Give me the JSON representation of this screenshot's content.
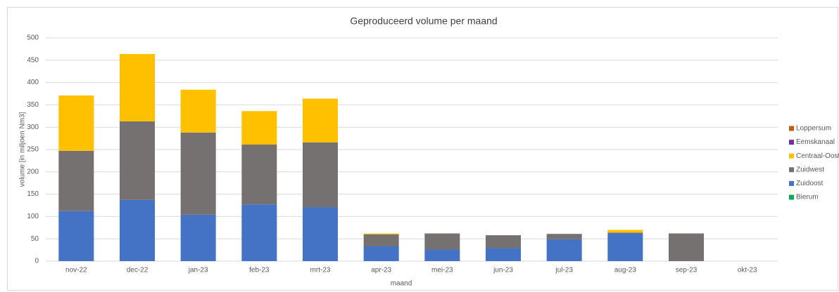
{
  "chart_data": {
    "type": "bar",
    "stacked": true,
    "title": "Geproduceerd volume per maand",
    "x_label": "maand",
    "y_label": "volume [in miljoen Nm3]",
    "categories": [
      "nov-22",
      "dec-22",
      "jan-23",
      "feb-23",
      "mrt-23",
      "apr-23",
      "mei-23",
      "jun-23",
      "jul-23",
      "aug-23",
      "sep-23",
      "okt-23"
    ],
    "series": [
      {
        "name": "Bierum",
        "color": "#00b050",
        "values": [
          0,
          0,
          0,
          0,
          0,
          0,
          0,
          0,
          0,
          0,
          0,
          0
        ]
      },
      {
        "name": "Zuidoost",
        "color": "#4472c4",
        "values": [
          112,
          137,
          104,
          127,
          121,
          33,
          26,
          29,
          49,
          62,
          0,
          0
        ]
      },
      {
        "name": "Zuidwest",
        "color": "#767171",
        "values": [
          135,
          176,
          184,
          134,
          145,
          27,
          36,
          29,
          12,
          2,
          62,
          0
        ]
      },
      {
        "name": "Centraal-Oost",
        "color": "#ffc000",
        "values": [
          124,
          151,
          96,
          75,
          98,
          2,
          0,
          0,
          0,
          6,
          0,
          0
        ]
      },
      {
        "name": "Eemskanaal",
        "color": "#7030a0",
        "values": [
          0,
          0,
          0,
          0,
          0,
          0,
          0,
          0,
          0,
          0,
          0,
          0
        ]
      },
      {
        "name": "Loppersum",
        "color": "#c55a11",
        "values": [
          0,
          0,
          0,
          0,
          0,
          0,
          0,
          0,
          0,
          0,
          0,
          0
        ]
      }
    ],
    "ylim": [
      0,
      500
    ],
    "yticks": [
      0,
      50,
      100,
      150,
      200,
      250,
      300,
      350,
      400,
      450,
      500
    ],
    "grid": true,
    "legend": "right"
  }
}
